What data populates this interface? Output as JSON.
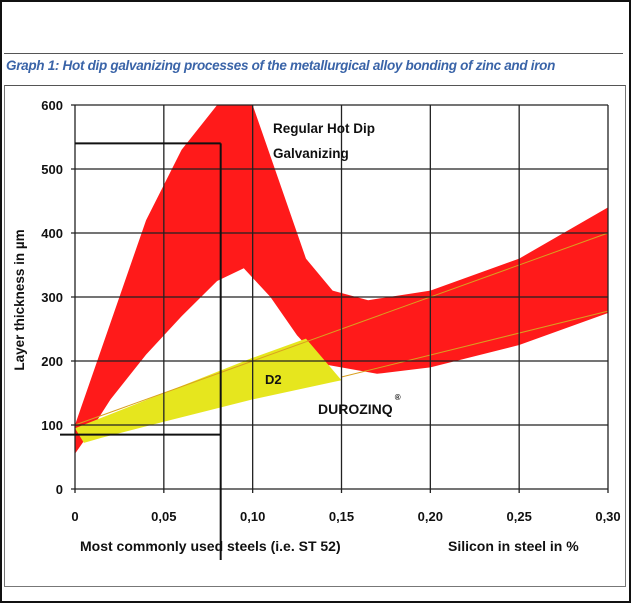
{
  "chart_data": {
    "type": "area",
    "title": "Graph 1: Hot dip galvanizing processes of the metallurgical alloy bonding of zinc and iron",
    "xlabel": "Silicon in steel in %",
    "ylabel": "Layer thickness in µm",
    "xlim": [
      0,
      0.3
    ],
    "ylim": [
      0,
      600
    ],
    "grid": true,
    "x_ticks": [
      "0",
      "0,05",
      "0,10",
      "0,15",
      "0,20",
      "0,25",
      "0,30"
    ],
    "y_ticks": [
      "0",
      "100",
      "200",
      "300",
      "400",
      "500",
      "600"
    ],
    "annotation_steels": "Most commonly used steels (i.e. ST 52)",
    "annotation_steels_range": {
      "x_max": 0.082,
      "y_min": 85,
      "y_max": 540
    },
    "series": [
      {
        "name": "Regular Hot Dip Galvanizing",
        "color": "#ff1a1a",
        "upper": [
          [
            0,
            100
          ],
          [
            0.02,
            260
          ],
          [
            0.04,
            420
          ],
          [
            0.06,
            530
          ],
          [
            0.08,
            600
          ],
          [
            0.1,
            600
          ],
          [
            0.115,
            480
          ],
          [
            0.13,
            360
          ],
          [
            0.145,
            310
          ],
          [
            0.165,
            295
          ],
          [
            0.2,
            310
          ],
          [
            0.25,
            360
          ],
          [
            0.3,
            440
          ]
        ],
        "lower": [
          [
            0,
            55
          ],
          [
            0.005,
            75
          ],
          [
            0.02,
            140
          ],
          [
            0.04,
            210
          ],
          [
            0.06,
            270
          ],
          [
            0.08,
            325
          ],
          [
            0.095,
            345
          ],
          [
            0.11,
            300
          ],
          [
            0.125,
            240
          ],
          [
            0.14,
            195
          ],
          [
            0.17,
            180
          ],
          [
            0.2,
            190
          ],
          [
            0.25,
            225
          ],
          [
            0.3,
            275
          ]
        ]
      },
      {
        "name": "DUROZINQ®",
        "label": "D2",
        "color": "#e6e61e",
        "upper": [
          [
            0,
            95
          ],
          [
            0.05,
            150
          ],
          [
            0.1,
            205
          ],
          [
            0.13,
            235
          ]
        ],
        "lower": [
          [
            0.005,
            72
          ],
          [
            0.015,
            80
          ],
          [
            0.05,
            105
          ],
          [
            0.1,
            140
          ],
          [
            0.15,
            170
          ],
          [
            0.13,
            235
          ]
        ]
      }
    ],
    "trend_lines": [
      {
        "color": "#d9a020",
        "points": [
          [
            0,
            100
          ],
          [
            0.3,
            400
          ]
        ]
      },
      {
        "color": "#d9a020",
        "points": [
          [
            0.15,
            175
          ],
          [
            0.3,
            278
          ]
        ]
      }
    ],
    "labels": {
      "regular_line1": "Regular Hot Dip",
      "regular_line2": "Galvanizing",
      "d2": "D2",
      "durozinq": "DUROZINQ",
      "registered": "®"
    }
  }
}
